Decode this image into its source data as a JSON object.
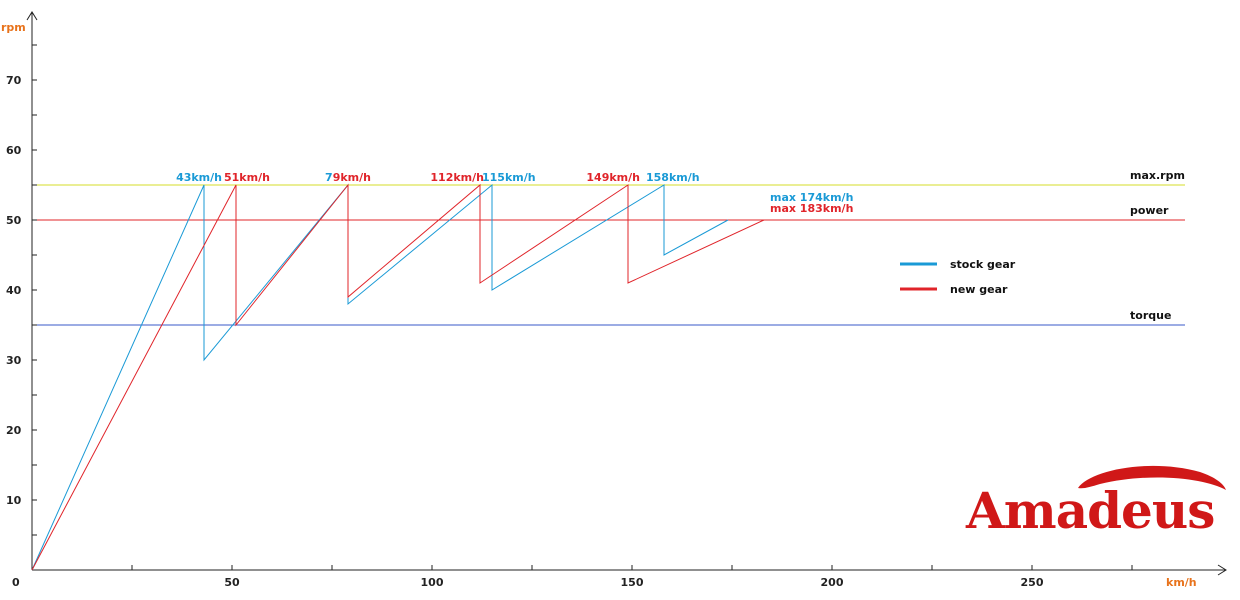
{
  "chart_data": {
    "type": "line",
    "ylabel": "rpm",
    "xlabel": "km/h",
    "xlim": [
      0,
      300
    ],
    "ylim": [
      0,
      80
    ],
    "x_ticks": [
      0,
      50,
      100,
      150,
      200,
      250
    ],
    "y_ticks": [
      10,
      20,
      30,
      40,
      50,
      60,
      70
    ],
    "reference_lines": [
      {
        "name": "max.rpm",
        "y": 55,
        "color": "#d4dc2a"
      },
      {
        "name": "power",
        "y": 50,
        "color": "#e0242a"
      },
      {
        "name": "torque",
        "y": 35,
        "color": "#3a58c8"
      }
    ],
    "series": [
      {
        "name": "stock gear",
        "color": "#1a9ad6",
        "points": [
          [
            0,
            0
          ],
          [
            43,
            55
          ],
          [
            43,
            30
          ],
          [
            79,
            55
          ],
          [
            79,
            38
          ],
          [
            115,
            55
          ],
          [
            115,
            40
          ],
          [
            158,
            55
          ],
          [
            158,
            45
          ],
          [
            174,
            50
          ]
        ]
      },
      {
        "name": "new gear",
        "color": "#e0242a",
        "points": [
          [
            0,
            0
          ],
          [
            51,
            55
          ],
          [
            51,
            35
          ],
          [
            79,
            55
          ],
          [
            79,
            39
          ],
          [
            112,
            55
          ],
          [
            112,
            41
          ],
          [
            149,
            55
          ],
          [
            149,
            41
          ],
          [
            183,
            50
          ]
        ]
      }
    ],
    "annotations": [
      {
        "text": "43km/h",
        "x": 43,
        "y": 55,
        "series": "stock gear"
      },
      {
        "text": "51km/h",
        "x": 51,
        "y": 55,
        "series": "new gear"
      },
      {
        "text": "79km/h",
        "x": 79,
        "y": 55,
        "series": "both"
      },
      {
        "text": "112km/h",
        "x": 112,
        "y": 55,
        "series": "new gear"
      },
      {
        "text": "115km/h",
        "x": 115,
        "y": 55,
        "series": "stock gear"
      },
      {
        "text": "149km/h",
        "x": 149,
        "y": 55,
        "series": "new gear"
      },
      {
        "text": "158km/h",
        "x": 158,
        "y": 55,
        "series": "stock gear"
      },
      {
        "text": "max 174km/h",
        "x": 174,
        "y": 50,
        "series": "stock gear"
      },
      {
        "text": "max 183km/h",
        "x": 183,
        "y": 50,
        "series": "new gear"
      }
    ],
    "legend_position": "right",
    "grid": false
  },
  "brand": {
    "logo_text": "Amadeus"
  },
  "colors": {
    "axis": "#222222",
    "stock": "#1a9ad6",
    "new": "#e0242a",
    "axis_label": "#e8731c",
    "logo": "#d01818"
  }
}
